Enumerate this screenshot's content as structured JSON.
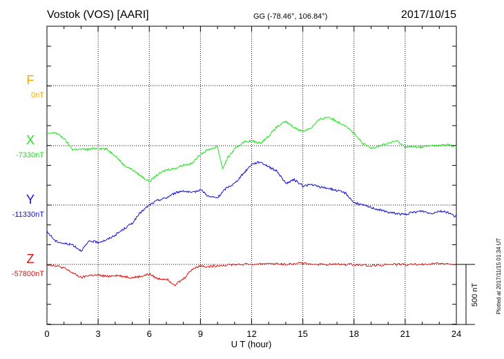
{
  "header": {
    "station": "Vostok (VOS)  [AARI]",
    "coords": "GG (-78.46°, 106.84°)",
    "date": "2017/10/15"
  },
  "footer": {
    "plotted": "Plotted at 2017/11/15 01:34 UT"
  },
  "chart_data": {
    "type": "line",
    "xlabel": "U T (hour)",
    "xlim": [
      0,
      24
    ],
    "xticks": [
      "0",
      "3",
      "6",
      "9",
      "12",
      "15",
      "18",
      "21",
      "24"
    ],
    "scale_bar_label": "500 nT",
    "series": [
      {
        "name": "F",
        "baseline_label": "0nT",
        "color": "#f5a800",
        "x": [],
        "y": []
      },
      {
        "name": "X",
        "baseline_label": "-7330nT",
        "color": "#22e022",
        "x": [
          0,
          0.5,
          1,
          1.5,
          2,
          2.5,
          3,
          3.5,
          4,
          4.5,
          5,
          5.5,
          6,
          6.5,
          7,
          7.5,
          8,
          8.5,
          9,
          9.5,
          10,
          10.3,
          10.6,
          11,
          11.5,
          12,
          12.5,
          13,
          13.5,
          14,
          14.5,
          15,
          15.5,
          16,
          16.5,
          17,
          17.5,
          18,
          18.5,
          19,
          19.5,
          20,
          20.5,
          21,
          21.5,
          22,
          22.5,
          23,
          23.5,
          24
        ],
        "y": [
          95,
          110,
          60,
          -30,
          -30,
          -30,
          -20,
          -30,
          -80,
          -160,
          -200,
          -250,
          -300,
          -240,
          -200,
          -190,
          -160,
          -150,
          -70,
          -30,
          -10,
          -190,
          -100,
          -30,
          30,
          40,
          20,
          80,
          160,
          200,
          150,
          120,
          150,
          220,
          240,
          200,
          170,
          100,
          20,
          -20,
          0,
          20,
          40,
          -10,
          -10,
          -10,
          0,
          0,
          10,
          -10
        ]
      },
      {
        "name": "Y",
        "baseline_label": "-11330nT",
        "color": "#1010d8",
        "x": [
          0,
          0.5,
          1,
          1.5,
          2,
          2.5,
          3,
          3.5,
          4,
          4.5,
          5,
          5.5,
          6,
          6.5,
          7,
          7.5,
          8,
          8.5,
          9,
          9.5,
          10,
          10.5,
          11,
          11.5,
          12,
          12.5,
          13,
          13.5,
          14,
          14.5,
          15,
          15.5,
          16,
          16.5,
          17,
          17.5,
          18,
          18.5,
          19,
          19.5,
          20,
          20.5,
          21,
          21.5,
          22,
          22.5,
          23,
          23.5,
          24
        ],
        "y": [
          -220,
          -300,
          -320,
          -330,
          -380,
          -300,
          -310,
          -290,
          -250,
          -200,
          -150,
          -60,
          0,
          40,
          60,
          100,
          120,
          100,
          130,
          70,
          60,
          140,
          180,
          260,
          340,
          360,
          320,
          280,
          180,
          210,
          160,
          170,
          150,
          140,
          120,
          100,
          20,
          0,
          -20,
          -40,
          -60,
          -70,
          -80,
          -60,
          -50,
          -70,
          -50,
          -60,
          -100
        ]
      },
      {
        "name": "Z",
        "baseline_label": "-57800nT",
        "color": "#e01010",
        "x": [
          0,
          0.5,
          1,
          1.5,
          2,
          2.5,
          3,
          3.5,
          4,
          4.5,
          5,
          5.5,
          6,
          6.5,
          7,
          7.5,
          8,
          8.5,
          9,
          9.5,
          10,
          11,
          12,
          13,
          14,
          15,
          16,
          17,
          18,
          19,
          20,
          21,
          22,
          23,
          24
        ],
        "y": [
          0,
          -10,
          -30,
          -70,
          -110,
          -90,
          -90,
          -100,
          -90,
          -100,
          -110,
          -100,
          -80,
          -120,
          -120,
          -170,
          -120,
          -40,
          -10,
          -20,
          -10,
          0,
          0,
          10,
          0,
          10,
          0,
          0,
          0,
          -10,
          0,
          0,
          0,
          10,
          0
        ]
      }
    ]
  }
}
